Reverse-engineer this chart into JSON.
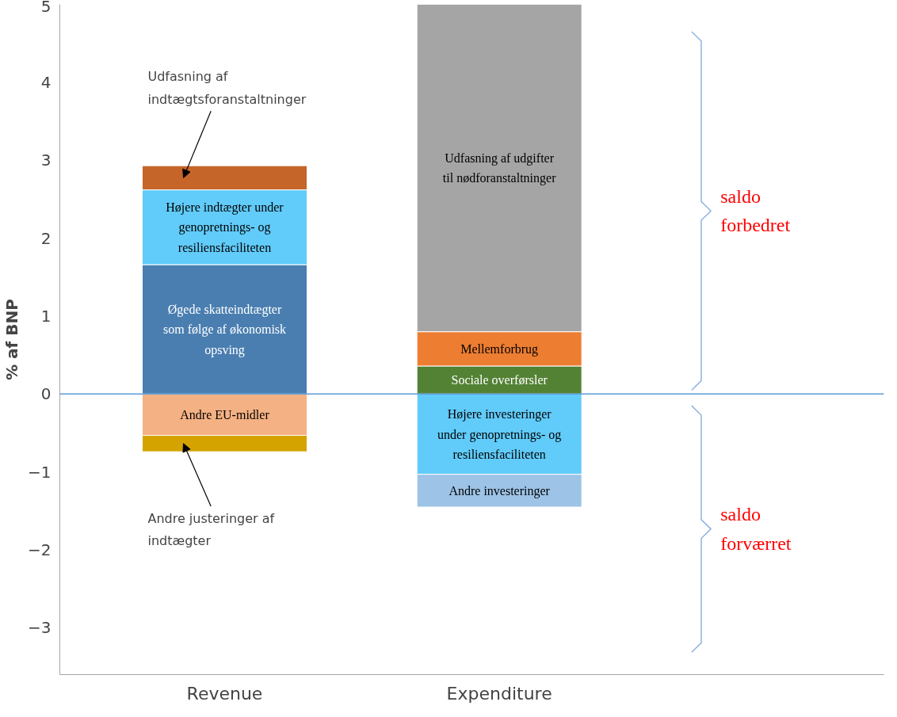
{
  "chart_data": {
    "type": "bar",
    "stacked": true,
    "ylabel": "% af BNP",
    "categories": [
      "Revenue",
      "Expenditure"
    ],
    "ylim": [
      -3.6,
      5
    ],
    "yticks": [
      -3,
      -2,
      -1,
      0,
      1,
      2,
      3,
      4,
      5
    ],
    "series": [
      {
        "name": "Øgede skatteindtægter som følge af økonomisk opsving",
        "color": "#4a7eb0",
        "values": [
          1.66,
          null
        ]
      },
      {
        "name": "Højere indtægter under genopretnings- og resiliensfaciliteten",
        "color": "#61cbf9",
        "values": [
          0.96,
          null
        ]
      },
      {
        "name": "Udfasning af indtægtsforanstaltninger",
        "color": "#c5652a",
        "values": [
          0.31,
          null
        ]
      },
      {
        "name": "Andre EU-midler",
        "color": "#f4b183",
        "values": [
          -0.53,
          null
        ]
      },
      {
        "name": "Andre justeringer af indtægter",
        "color": "#d4a300",
        "values": [
          -0.21,
          null
        ]
      },
      {
        "name": "Sociale overførsler",
        "color": "#548235",
        "values": [
          null,
          0.36
        ]
      },
      {
        "name": "Mellemforbrug",
        "color": "#ed7d31",
        "values": [
          null,
          0.44
        ]
      },
      {
        "name": "Udfasning af udgifter til nødforanstaltninger",
        "color": "#a5a5a5",
        "values": [
          null,
          4.2
        ]
      },
      {
        "name": "Højere investeringer under genopretnings- og resiliensfaciliteten",
        "color": "#61cbf9",
        "values": [
          null,
          -1.03
        ]
      },
      {
        "name": "Andre investeringer",
        "color": "#9dc3e6",
        "values": [
          null,
          -0.42
        ]
      }
    ],
    "ref_lines": [
      {
        "axis": "y",
        "value": 0,
        "color": "#5b9bd5"
      }
    ],
    "annotations": [
      "saldo forbedret",
      "saldo forværret"
    ]
  }
}
